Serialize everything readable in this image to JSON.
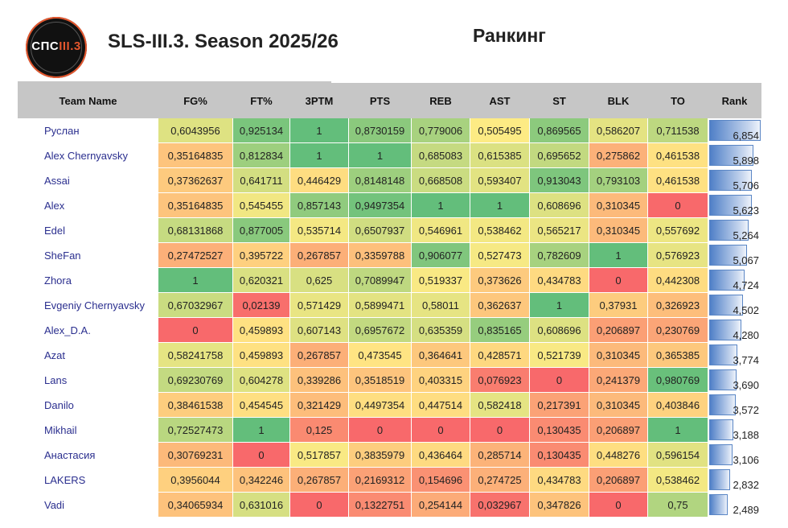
{
  "header": {
    "logo_text_main": "СПС",
    "logo_text_accent": "III.3",
    "app_title": "SLS-III.3. Season 2025/26",
    "page_heading": "Ранкинг"
  },
  "colors": {
    "scale_low": "#f8696b",
    "scale_mid": "#ffeb84",
    "scale_high": "#63be7b",
    "header_bg": "#c6c6c6",
    "team_name": "#2b2f8f",
    "rank_bar": "#5a86c5"
  },
  "table": {
    "columns": [
      "Team Name",
      "FG%",
      "FT%",
      "3PTM",
      "PTS",
      "REB",
      "AST",
      "ST",
      "BLK",
      "TO",
      "Rank"
    ],
    "rows": [
      {
        "team": "Руслан",
        "vals": [
          "0,6043956",
          "0,925134",
          "1",
          "0,8730159",
          "0,779006",
          "0,505495",
          "0,869565",
          "0,586207",
          "0,711538"
        ],
        "rank": "6,854"
      },
      {
        "team": "Alex Chernyavsky",
        "vals": [
          "0,35164835",
          "0,812834",
          "1",
          "1",
          "0,685083",
          "0,615385",
          "0,695652",
          "0,275862",
          "0,461538"
        ],
        "rank": "5,898"
      },
      {
        "team": "Assai",
        "vals": [
          "0,37362637",
          "0,641711",
          "0,446429",
          "0,8148148",
          "0,668508",
          "0,593407",
          "0,913043",
          "0,793103",
          "0,461538"
        ],
        "rank": "5,706"
      },
      {
        "team": "Alex",
        "vals": [
          "0,35164835",
          "0,545455",
          "0,857143",
          "0,9497354",
          "1",
          "1",
          "0,608696",
          "0,310345",
          "0"
        ],
        "rank": "5,623"
      },
      {
        "team": "Edel",
        "vals": [
          "0,68131868",
          "0,877005",
          "0,535714",
          "0,6507937",
          "0,546961",
          "0,538462",
          "0,565217",
          "0,310345",
          "0,557692"
        ],
        "rank": "5,264"
      },
      {
        "team": "SheFan",
        "vals": [
          "0,27472527",
          "0,395722",
          "0,267857",
          "0,3359788",
          "0,906077",
          "0,527473",
          "0,782609",
          "1",
          "0,576923"
        ],
        "rank": "5,067"
      },
      {
        "team": "Zhora",
        "vals": [
          "1",
          "0,620321",
          "0,625",
          "0,7089947",
          "0,519337",
          "0,373626",
          "0,434783",
          "0",
          "0,442308"
        ],
        "rank": "4,724"
      },
      {
        "team": "Evgeniy Chernyavsky",
        "vals": [
          "0,67032967",
          "0,02139",
          "0,571429",
          "0,5899471",
          "0,58011",
          "0,362637",
          "1",
          "0,37931",
          "0,326923"
        ],
        "rank": "4,502"
      },
      {
        "team": "Alex_D.A.",
        "vals": [
          "0",
          "0,459893",
          "0,607143",
          "0,6957672",
          "0,635359",
          "0,835165",
          "0,608696",
          "0,206897",
          "0,230769"
        ],
        "rank": "4,280"
      },
      {
        "team": "Azat",
        "vals": [
          "0,58241758",
          "0,459893",
          "0,267857",
          "0,473545",
          "0,364641",
          "0,428571",
          "0,521739",
          "0,310345",
          "0,365385"
        ],
        "rank": "3,774"
      },
      {
        "team": "Lans",
        "vals": [
          "0,69230769",
          "0,604278",
          "0,339286",
          "0,3518519",
          "0,403315",
          "0,076923",
          "0",
          "0,241379",
          "0,980769"
        ],
        "rank": "3,690"
      },
      {
        "team": "Danilo",
        "vals": [
          "0,38461538",
          "0,454545",
          "0,321429",
          "0,4497354",
          "0,447514",
          "0,582418",
          "0,217391",
          "0,310345",
          "0,403846"
        ],
        "rank": "3,572"
      },
      {
        "team": "Mikhail",
        "vals": [
          "0,72527473",
          "1",
          "0,125",
          "0",
          "0",
          "0",
          "0,130435",
          "0,206897",
          "1"
        ],
        "rank": "3,188"
      },
      {
        "team": "Анастасия",
        "vals": [
          "0,30769231",
          "0",
          "0,517857",
          "0,3835979",
          "0,436464",
          "0,285714",
          "0,130435",
          "0,448276",
          "0,596154"
        ],
        "rank": "3,106"
      },
      {
        "team": "LAKERS",
        "vals": [
          "0,3956044",
          "0,342246",
          "0,267857",
          "0,2169312",
          "0,154696",
          "0,274725",
          "0,434783",
          "0,206897",
          "0,538462"
        ],
        "rank": "2,832"
      },
      {
        "team": "Vadi",
        "vals": [
          "0,34065934",
          "0,631016",
          "0",
          "0,1322751",
          "0,254144",
          "0,032967",
          "0,347826",
          "0",
          "0,75"
        ],
        "rank": "2,489"
      }
    ]
  }
}
